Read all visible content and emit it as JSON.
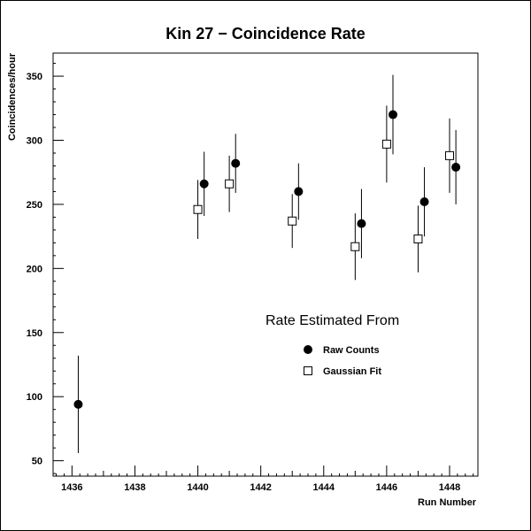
{
  "chart_data": {
    "type": "scatter",
    "title": "Kin 27 − Coincidence Rate",
    "xlabel": "Run Number",
    "ylabel": "Coincidences/hour",
    "xlim": [
      1435.4,
      1448.9
    ],
    "ylim": [
      38,
      368
    ],
    "xticks": [
      "1436",
      "1438",
      "1440",
      "1442",
      "1444",
      "1446",
      "1448"
    ],
    "yticks": [
      "50",
      "100",
      "150",
      "200",
      "250",
      "300",
      "350"
    ],
    "legend_title": "Rate Estimated From",
    "series": [
      {
        "name": "Raw Counts",
        "marker": "filled-circle",
        "points": [
          {
            "x": 1436.2,
            "y": 94,
            "err": 38
          },
          {
            "x": 1440.2,
            "y": 266,
            "err": 25
          },
          {
            "x": 1441.2,
            "y": 282,
            "err": 23
          },
          {
            "x": 1443.2,
            "y": 260,
            "err": 22
          },
          {
            "x": 1445.2,
            "y": 235,
            "err": 27
          },
          {
            "x": 1446.2,
            "y": 320,
            "err": 31
          },
          {
            "x": 1447.2,
            "y": 252,
            "err": 27
          },
          {
            "x": 1448.2,
            "y": 279,
            "err": 29
          }
        ]
      },
      {
        "name": "Gaussian Fit",
        "marker": "open-square",
        "points": [
          {
            "x": 1440.0,
            "y": 246,
            "err": 23
          },
          {
            "x": 1441.0,
            "y": 266,
            "err": 22
          },
          {
            "x": 1443.0,
            "y": 237,
            "err": 21
          },
          {
            "x": 1445.0,
            "y": 217,
            "err": 26
          },
          {
            "x": 1446.0,
            "y": 297,
            "err": 30
          },
          {
            "x": 1447.0,
            "y": 223,
            "err": 26
          },
          {
            "x": 1448.0,
            "y": 288,
            "err": 29
          }
        ]
      }
    ]
  }
}
